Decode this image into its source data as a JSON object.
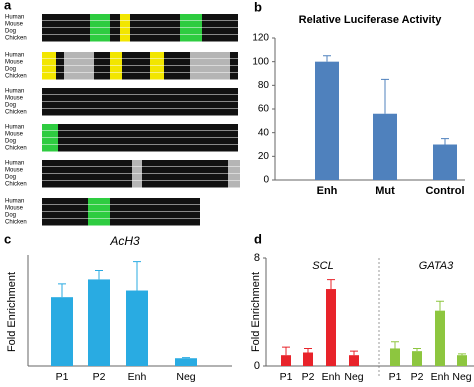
{
  "panel_labels": [
    "a",
    "b",
    "c",
    "d"
  ],
  "alignment": {
    "species": [
      "Human",
      "Mouse",
      "Dog",
      "Chicken"
    ]
  },
  "chart_data": [
    {
      "type": "bar",
      "title": "Relative Luciferase Activity",
      "categories": [
        "Enh",
        "Mut",
        "Control"
      ],
      "values": [
        100,
        56,
        30
      ],
      "errors": [
        5,
        29,
        5
      ],
      "color": "#4f81bd",
      "ylim": [
        0,
        120
      ],
      "yticks": [
        0,
        20,
        40,
        60,
        80,
        100,
        120
      ]
    },
    {
      "type": "bar",
      "title": "AcH3",
      "y_label": "Fold Enrichment",
      "categories": [
        "P1",
        "P2",
        "Enh",
        "Neg"
      ],
      "values": [
        31,
        39,
        34,
        3.5
      ],
      "errors": [
        6,
        4,
        13,
        0.3
      ],
      "color": "#29abe2",
      "ylim": [
        0,
        50
      ]
    },
    {
      "type": "bar",
      "y_label": "Fold Enrichment",
      "ylim": [
        0,
        8
      ],
      "yticks": [
        0,
        8
      ],
      "groups": [
        {
          "name": "SCL",
          "color": "#e8232a",
          "categories": [
            "P1",
            "P2",
            "Enh",
            "Neg"
          ],
          "values": [
            0.8,
            1.0,
            5.7,
            0.8
          ],
          "errors": [
            0.6,
            0.3,
            0.7,
            0.3
          ]
        },
        {
          "name": "GATA3",
          "color": "#8dc63f",
          "categories": [
            "P1",
            "P2",
            "Enh",
            "Neg"
          ],
          "values": [
            1.3,
            1.1,
            4.1,
            0.8
          ],
          "errors": [
            0.5,
            0.2,
            0.7,
            0.1
          ]
        }
      ]
    }
  ]
}
